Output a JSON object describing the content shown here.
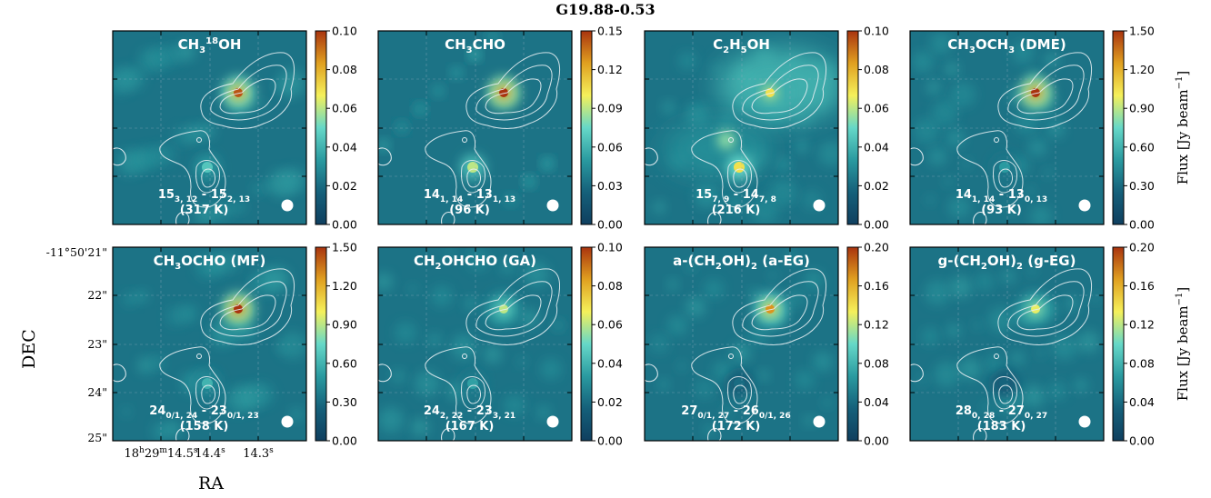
{
  "figure": {
    "title": "G19.88-0.53",
    "xlabel": "RA",
    "ylabel": "DEC",
    "colorbar_label": "Flux [Jy beam",
    "colorbar_label_exp": "−1",
    "colorbar_label_close": "]",
    "ra_ticks": [
      {
        "base": "18",
        "u1": "h",
        "mid": "29",
        "u2": "m",
        "tail": "14.5",
        "u3": "s"
      },
      {
        "base": "14.4",
        "u1": "s"
      },
      {
        "base": "14.3",
        "u1": "s"
      }
    ],
    "dec_ticks": [
      "-11°50'21\"",
      "22\"",
      "23\"",
      "24\"",
      "25\""
    ]
  },
  "colormap": [
    "#0f3f5f",
    "#15607a",
    "#2a9aa0",
    "#66d8c8",
    "#f5f05a",
    "#e0a020",
    "#a9340f"
  ],
  "contour_color": "#e6eef2",
  "chart_data": [
    {
      "type": "heatmap",
      "molecule": [
        {
          "t": "CH"
        },
        {
          "t": "3",
          "sub": true
        },
        {
          "t": "18",
          "sup": true
        },
        {
          "t": "OH"
        }
      ],
      "transition": [
        {
          "t": "15"
        },
        {
          "t": "3, 12",
          "sub": true
        },
        {
          "t": " - 15"
        },
        {
          "t": "2, 13",
          "sub": true
        }
      ],
      "energy": "(317 K)",
      "cbar_ticks": [
        "0.00",
        "0.02",
        "0.04",
        "0.06",
        "0.08",
        "0.10"
      ],
      "vmax": 0.1,
      "peaks": {
        "north": 0.095,
        "south": 0.045,
        "mid": 0.0
      }
    },
    {
      "type": "heatmap",
      "molecule": [
        {
          "t": "CH"
        },
        {
          "t": "3",
          "sub": true
        },
        {
          "t": "CHO"
        }
      ],
      "transition": [
        {
          "t": "14"
        },
        {
          "t": "1, 14",
          "sub": true
        },
        {
          "t": " - 13"
        },
        {
          "t": "1, 13",
          "sub": true
        }
      ],
      "energy": "(96 K)",
      "cbar_ticks": [
        "0.00",
        "0.03",
        "0.06",
        "0.09",
        "0.12",
        "0.15"
      ],
      "vmax": 0.15,
      "peaks": {
        "north": 0.15,
        "south": 0.09,
        "mid": 0.0
      }
    },
    {
      "type": "heatmap",
      "molecule": [
        {
          "t": "C"
        },
        {
          "t": "2",
          "sub": true
        },
        {
          "t": "H"
        },
        {
          "t": "5",
          "sub": true
        },
        {
          "t": "OH"
        }
      ],
      "transition": [
        {
          "t": "15"
        },
        {
          "t": "7, 9",
          "sub": true
        },
        {
          "t": " - 14"
        },
        {
          "t": "7, 8",
          "sub": true
        }
      ],
      "energy": "(216 K)",
      "cbar_ticks": [
        "0.00",
        "0.02",
        "0.04",
        "0.06",
        "0.08",
        "0.10"
      ],
      "vmax": 0.1,
      "peaks": {
        "north": 0.07,
        "south": 0.07,
        "mid": 0.045
      }
    },
    {
      "type": "heatmap",
      "molecule": [
        {
          "t": "CH"
        },
        {
          "t": "3",
          "sub": true
        },
        {
          "t": "OCH"
        },
        {
          "t": "3",
          "sub": true
        },
        {
          "t": " (DME)"
        }
      ],
      "transition": [
        {
          "t": "14"
        },
        {
          "t": "1, 14",
          "sub": true
        },
        {
          "t": " - 13"
        },
        {
          "t": "0, 13",
          "sub": true
        }
      ],
      "energy": "(93 K)",
      "cbar_ticks": [
        "0.00",
        "0.30",
        "0.60",
        "0.90",
        "1.20",
        "1.50"
      ],
      "vmax": 1.5,
      "peaks": {
        "north": 1.5,
        "south": 0.5,
        "mid": 0.0
      }
    },
    {
      "type": "heatmap",
      "molecule": [
        {
          "t": "CH"
        },
        {
          "t": "3",
          "sub": true
        },
        {
          "t": "OCHO (MF)"
        }
      ],
      "transition": [
        {
          "t": "24"
        },
        {
          "t": "0/1, 24",
          "sub": true
        },
        {
          "t": " - 23"
        },
        {
          "t": "0/1, 23",
          "sub": true
        }
      ],
      "energy": "(158 K)",
      "cbar_ticks": [
        "0.00",
        "0.30",
        "0.60",
        "0.90",
        "1.20",
        "1.50"
      ],
      "vmax": 1.5,
      "peaks": {
        "north": 1.5,
        "south": 0.6,
        "mid": 0.0
      }
    },
    {
      "type": "heatmap",
      "molecule": [
        {
          "t": "CH"
        },
        {
          "t": "2",
          "sub": true
        },
        {
          "t": "OHCHO (GA)"
        }
      ],
      "transition": [
        {
          "t": "24"
        },
        {
          "t": "2, 22",
          "sub": true
        },
        {
          "t": " - 23"
        },
        {
          "t": "3, 21",
          "sub": true
        }
      ],
      "energy": "(167 K)",
      "cbar_ticks": [
        "0.00",
        "0.02",
        "0.04",
        "0.06",
        "0.08",
        "0.10"
      ],
      "vmax": 0.1,
      "peaks": {
        "north": 0.06,
        "south": 0.035,
        "mid": 0.0
      }
    },
    {
      "type": "heatmap",
      "molecule": [
        {
          "t": "a-(CH"
        },
        {
          "t": "2",
          "sub": true
        },
        {
          "t": "OH)"
        },
        {
          "t": "2",
          "sub": true
        },
        {
          "t": " (a-EG)"
        }
      ],
      "transition": [
        {
          "t": "27"
        },
        {
          "t": "0/1, 27",
          "sub": true
        },
        {
          "t": " - 26"
        },
        {
          "t": "0/1, 26",
          "sub": true
        }
      ],
      "energy": "(172 K)",
      "cbar_ticks": [
        "0.00",
        "0.04",
        "0.08",
        "0.12",
        "0.16",
        "0.20"
      ],
      "vmax": 0.2,
      "peaks": {
        "north": 0.17,
        "south": 0.04,
        "mid": 0.0
      }
    },
    {
      "type": "heatmap",
      "molecule": [
        {
          "t": "g-(CH"
        },
        {
          "t": "2",
          "sub": true
        },
        {
          "t": "OH)"
        },
        {
          "t": "2",
          "sub": true
        },
        {
          "t": " (g-EG)"
        }
      ],
      "transition": [
        {
          "t": "28"
        },
        {
          "t": "0, 28",
          "sub": true
        },
        {
          "t": " - 27"
        },
        {
          "t": "0, 27",
          "sub": true
        }
      ],
      "energy": "(183 K)",
      "cbar_ticks": [
        "0.00",
        "0.04",
        "0.08",
        "0.12",
        "0.16",
        "0.20"
      ],
      "vmax": 0.2,
      "peaks": {
        "north": 0.13,
        "south": 0.035,
        "mid": 0.0
      }
    }
  ]
}
